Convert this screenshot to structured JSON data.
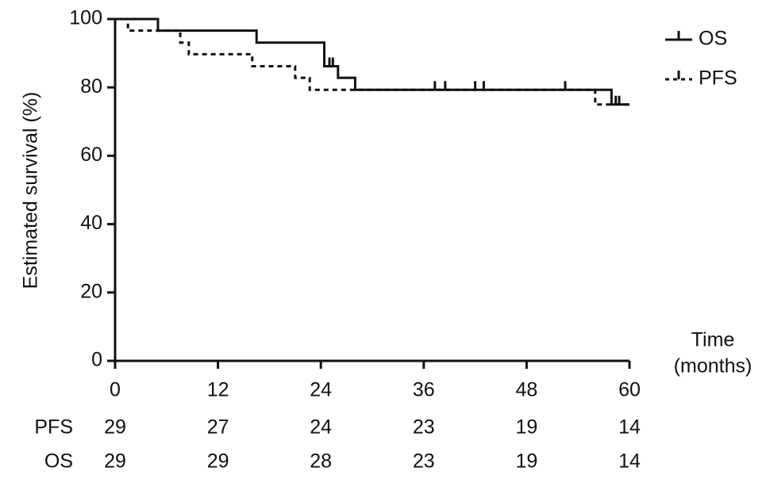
{
  "chart_data": {
    "type": "step",
    "y_label": "Estimated survival (%)",
    "x_label": [
      "Time",
      "(months)"
    ],
    "xlim": [
      0,
      60
    ],
    "xticks": [
      0,
      12,
      24,
      36,
      48,
      60
    ],
    "ylim": [
      0,
      100
    ],
    "yticks": [
      0,
      20,
      40,
      60,
      80,
      100
    ],
    "series": [
      {
        "name": "OS",
        "color": "#111111",
        "dash": false,
        "x": [
          0,
          5,
          16.5,
          24.4,
          26,
          28,
          57.9,
          60
        ],
        "values": [
          100,
          96.6,
          93.1,
          86.2,
          82.8,
          79.3,
          75,
          75
        ],
        "censor_x": [
          25,
          25.4,
          37.3,
          38.5,
          42,
          43,
          52.5,
          58.4,
          58.8
        ],
        "censor_values": [
          86.2,
          86.2,
          79.3,
          79.3,
          79.3,
          79.3,
          79.3,
          75,
          75
        ]
      },
      {
        "name": "PFS",
        "color": "#111111",
        "dash": true,
        "x": [
          0,
          1.5,
          7.6,
          8.6,
          16,
          21,
          22.7,
          56,
          60
        ],
        "values": [
          100,
          96.6,
          93.1,
          89.7,
          86.2,
          82.8,
          79.3,
          75,
          75
        ],
        "censor_x": [],
        "censor_values": []
      }
    ],
    "risk_table": {
      "rows": [
        {
          "name": "PFS",
          "values": [
            29,
            27,
            24,
            23,
            19,
            14
          ]
        },
        {
          "name": "OS",
          "values": [
            29,
            29,
            28,
            23,
            19,
            14
          ]
        }
      ]
    }
  }
}
